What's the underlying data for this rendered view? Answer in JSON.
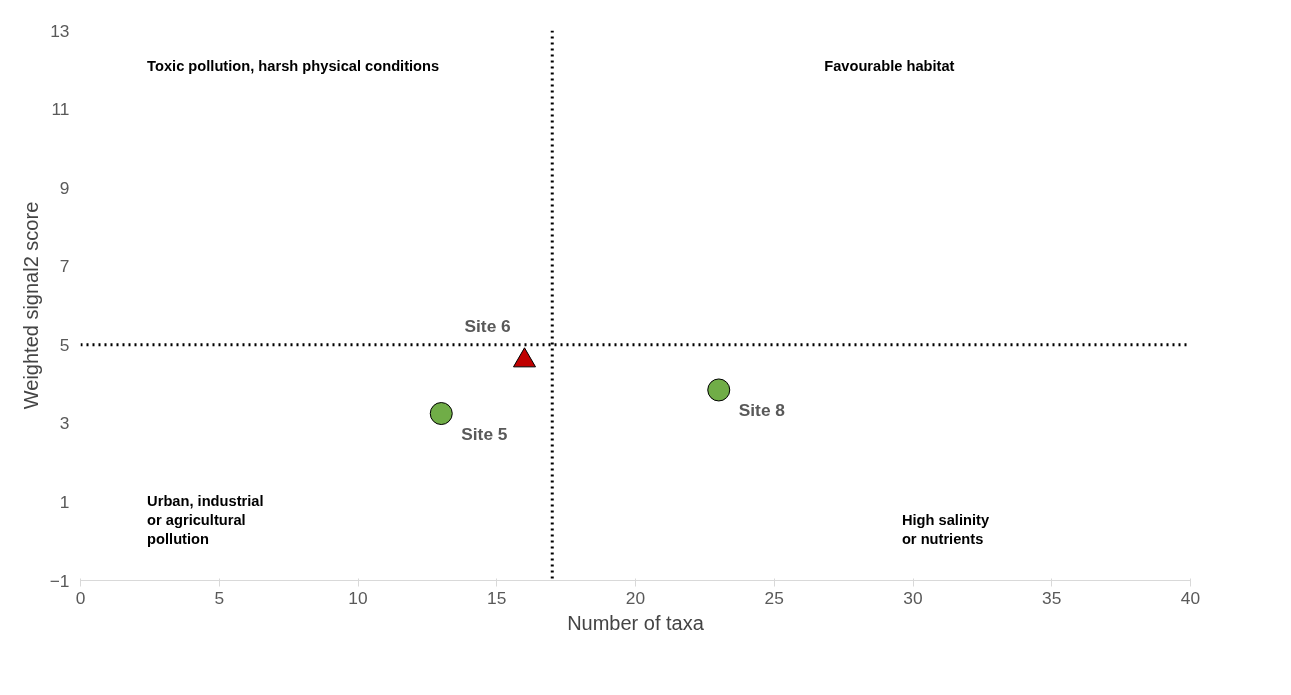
{
  "chart_data": {
    "type": "scatter",
    "xlabel": "Number of taxa",
    "ylabel": "Weighted signal2 score",
    "xlim": [
      0,
      40
    ],
    "xticks": [
      0,
      5,
      10,
      15,
      20,
      25,
      30,
      35,
      40
    ],
    "ylim": [
      -1,
      13
    ],
    "yticks": [
      -1,
      1,
      3,
      5,
      7,
      9,
      11,
      13
    ],
    "grid": false,
    "series": [
      {
        "color": "#70ad47",
        "marker": "circle",
        "x": [
          13,
          23
        ],
        "values": [
          3.25,
          3.85
        ],
        "value_labels": [
          "Site 5",
          "Site 8"
        ]
      },
      {
        "color": "#c00000",
        "marker": "triangle",
        "x": [
          16
        ],
        "values": [
          4.6
        ],
        "value_labels": [
          "Site 6"
        ]
      }
    ],
    "ref_lines": [
      {
        "axis": "x",
        "value": 17,
        "color": "#000000",
        "line_style": "dotted"
      },
      {
        "axis": "y",
        "value": 5,
        "color": "#000000",
        "line_style": "dotted"
      }
    ],
    "annotations": [
      "Toxic pollution, harsh physical conditions",
      "Favourable habitat",
      "Urban, industrial\n or agricultural\npollution",
      "High salinity\nor nutrients"
    ]
  }
}
